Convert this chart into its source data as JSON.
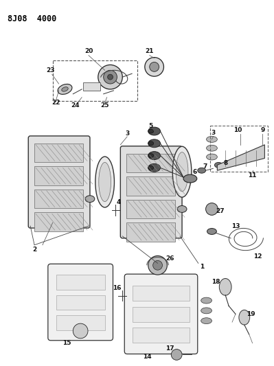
{
  "title": "8J08 4000",
  "bg_color": "#ffffff",
  "fig_width": 3.99,
  "fig_height": 5.33,
  "dpi": 100
}
